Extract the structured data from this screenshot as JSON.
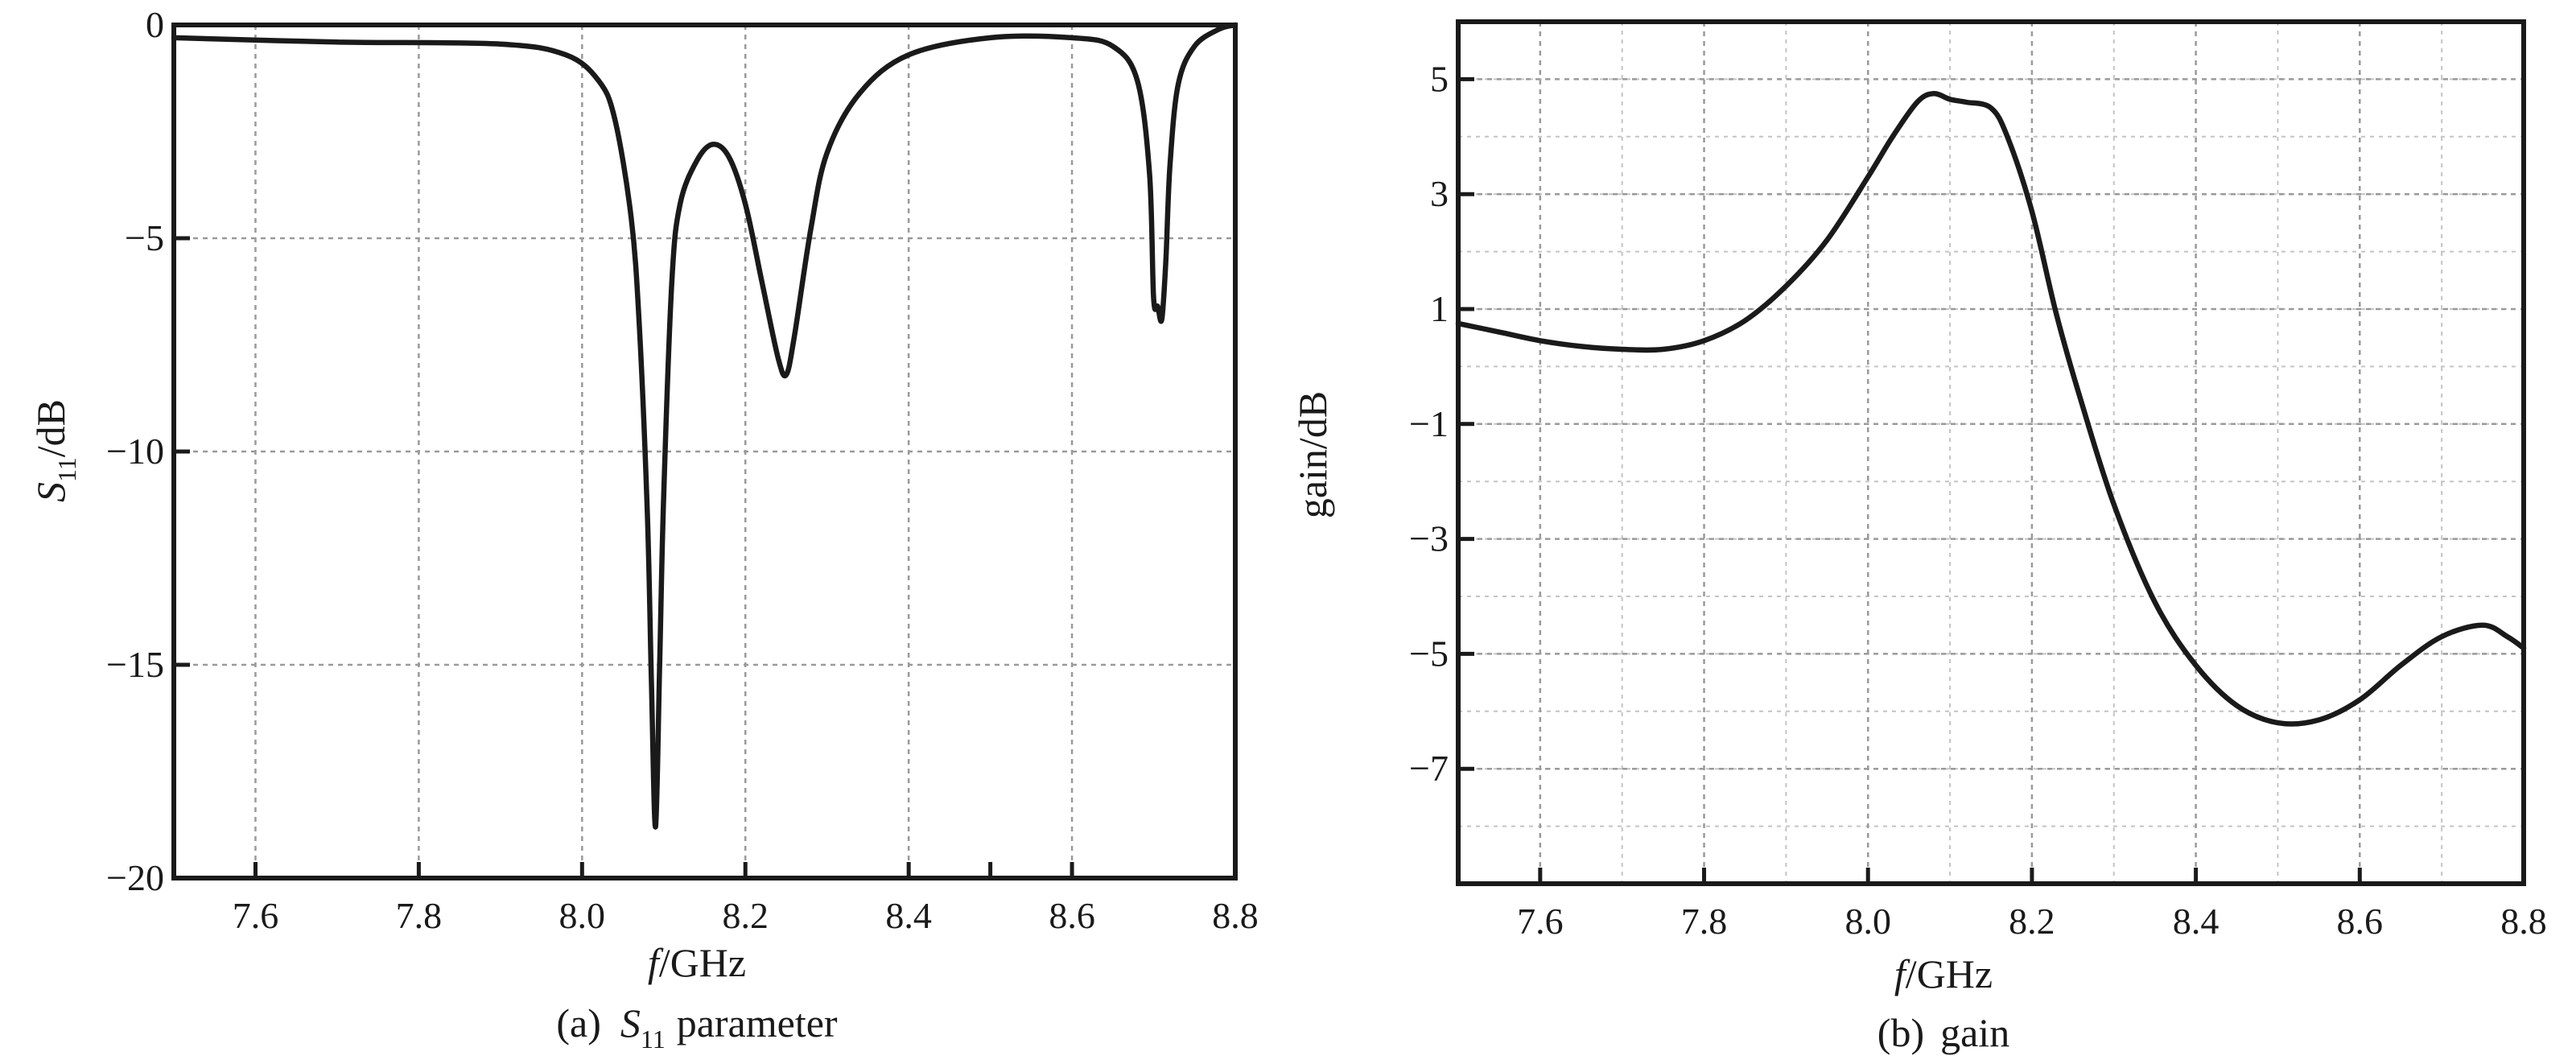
{
  "chart_data": [
    {
      "type": "line",
      "caption_prefix": "(a)",
      "caption_label": "S",
      "caption_sub": "11",
      "caption_suffix": "parameter",
      "xlabel_italic": "f",
      "xlabel_rest": "/GHz",
      "ylabel_main": "S",
      "ylabel_sub": "11",
      "ylabel_rest": "/dB",
      "xlim": [
        7.5,
        8.8
      ],
      "ylim": [
        -20,
        0
      ],
      "xticks": [
        "7.6",
        "7.8",
        "8.0",
        "8.2",
        "8.4",
        "8.6",
        "8.8"
      ],
      "yticks": [
        "0",
        "−5",
        "−10",
        "−15",
        "−20"
      ],
      "grid": true,
      "series": [
        {
          "x": [
            7.5,
            7.7,
            7.9,
            7.98,
            8.02,
            8.04,
            8.06,
            8.07,
            8.08,
            8.085,
            8.09,
            8.095,
            8.1,
            8.11,
            8.12,
            8.14,
            8.16,
            8.18,
            8.2,
            8.22,
            8.24,
            8.25,
            8.26,
            8.28,
            8.3,
            8.34,
            8.4,
            8.5,
            8.6,
            8.65,
            8.68,
            8.695,
            8.7,
            8.705,
            8.71,
            8.715,
            8.72,
            8.73,
            8.75,
            8.78,
            8.8
          ],
          "y": [
            -0.3,
            -0.4,
            -0.45,
            -0.7,
            -1.3,
            -2.2,
            -4.5,
            -7.0,
            -11.5,
            -15.5,
            -18.8,
            -15.0,
            -11.0,
            -6.0,
            -4.2,
            -3.2,
            -2.8,
            -3.1,
            -4.2,
            -6.0,
            -7.8,
            -8.2,
            -7.3,
            -4.8,
            -3.0,
            -1.6,
            -0.7,
            -0.3,
            -0.3,
            -0.5,
            -1.3,
            -3.5,
            -6.4,
            -6.6,
            -6.9,
            -5.5,
            -3.3,
            -1.4,
            -0.5,
            -0.1,
            0.0
          ]
        }
      ]
    },
    {
      "type": "line",
      "caption_prefix": "(b)",
      "caption_label": "gain",
      "xlabel_italic": "f",
      "xlabel_rest": "/GHz",
      "ylabel": "gain/dB",
      "xlim": [
        7.5,
        8.8
      ],
      "ylim": [
        -9,
        6
      ],
      "xticks": [
        "7.6",
        "7.8",
        "8.0",
        "8.2",
        "8.4",
        "8.6",
        "8.8"
      ],
      "yticks": [
        "5",
        "3",
        "1",
        "−1",
        "−3",
        "−5",
        "−7"
      ],
      "grid": true,
      "series": [
        {
          "x": [
            7.5,
            7.55,
            7.6,
            7.65,
            7.7,
            7.75,
            7.8,
            7.85,
            7.9,
            7.95,
            8.0,
            8.03,
            8.06,
            8.08,
            8.1,
            8.12,
            8.15,
            8.17,
            8.2,
            8.23,
            8.26,
            8.3,
            8.35,
            8.4,
            8.45,
            8.5,
            8.55,
            8.6,
            8.65,
            8.7,
            8.75,
            8.78,
            8.8
          ],
          "y": [
            0.75,
            0.6,
            0.45,
            0.35,
            0.3,
            0.3,
            0.45,
            0.8,
            1.4,
            2.2,
            3.3,
            4.0,
            4.6,
            4.75,
            4.65,
            4.6,
            4.5,
            4.0,
            2.7,
            0.9,
            -0.6,
            -2.4,
            -4.1,
            -5.2,
            -5.9,
            -6.2,
            -6.15,
            -5.8,
            -5.2,
            -4.7,
            -4.5,
            -4.7,
            -4.9
          ]
        }
      ]
    }
  ]
}
